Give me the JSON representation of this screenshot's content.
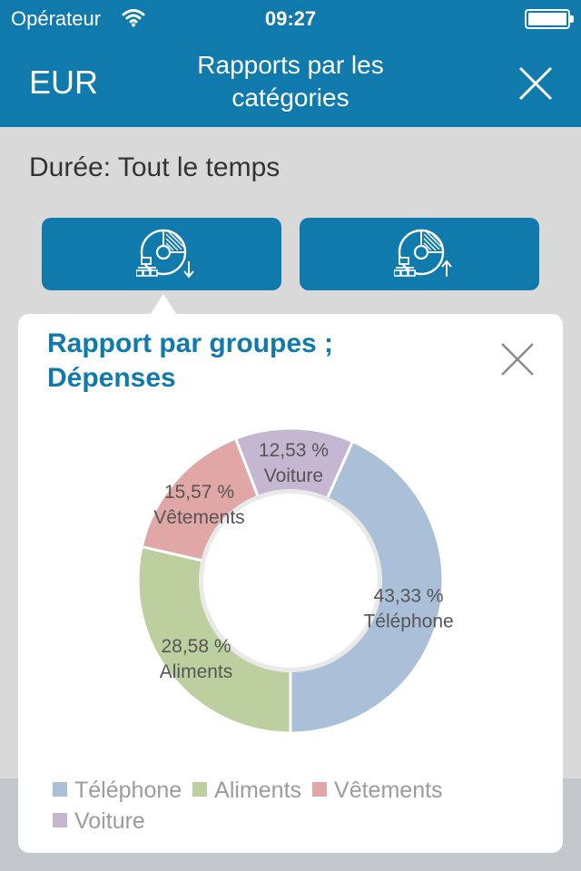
{
  "status_bar": {
    "carrier": "Opérateur",
    "time": "09:27"
  },
  "nav": {
    "currency": "EUR",
    "title": "Rapports par les\ncatégories"
  },
  "duration": "Durée: Tout le temps",
  "buttons": {
    "expense_icon": "pie-chart-arrow-down-icon",
    "income_icon": "pie-chart-arrow-up-icon"
  },
  "popup": {
    "title": "Rapport par groupes ;\nDépenses"
  },
  "colors": {
    "accent": "#0f7aab"
  },
  "chart_data": {
    "type": "pie",
    "donut": true,
    "legend_position": "bottom",
    "slices": [
      {
        "label": "Téléphone",
        "value": 43.33,
        "display": "43,33  %",
        "color": "#a9c0d8"
      },
      {
        "label": "Aliments",
        "value": 28.58,
        "display": "28,58  %",
        "color": "#bdcf9f"
      },
      {
        "label": "Vêtements",
        "value": 15.57,
        "display": "15,57  %",
        "color": "#e0a7a6"
      },
      {
        "label": "Voiture",
        "value": 12.53,
        "display": "12,53  %",
        "color": "#c5b6d2"
      }
    ]
  }
}
